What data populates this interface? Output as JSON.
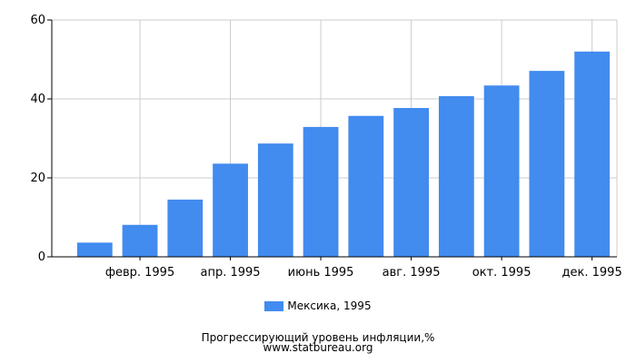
{
  "chart_data": {
    "type": "bar",
    "categories": [
      "",
      "февр. 1995",
      "",
      "апр. 1995",
      "",
      "июнь 1995",
      "",
      "авг. 1995",
      "",
      "окт. 1995",
      "",
      "дек. 1995"
    ],
    "series": [
      {
        "name": "Мексика, 1995",
        "values": [
          3.6,
          8.1,
          14.5,
          23.6,
          28.7,
          32.9,
          35.7,
          37.7,
          40.7,
          43.4,
          47.1,
          52.0
        ]
      }
    ],
    "ylim": [
      0,
      60
    ],
    "yticks": [
      0,
      20,
      40,
      60
    ],
    "grid": true,
    "legend": "bottom",
    "title": "Прогрессирующий уровень инфляции,%",
    "source": "www.statbureau.org",
    "colors": {
      "bar": "#428bef",
      "grid": "#cccccc",
      "axis": "#000000"
    }
  }
}
